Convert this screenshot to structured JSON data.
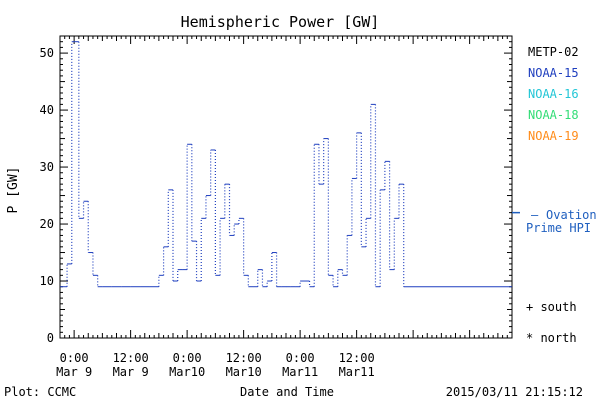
{
  "chart_data": {
    "type": "line",
    "title": "Hemispheric Power [GW]",
    "xlabel": "Date and Time",
    "ylabel": "P [GW]",
    "ylim": [
      0,
      53
    ],
    "yticks": [
      0,
      10,
      20,
      30,
      40,
      50
    ],
    "x_range_hours": [
      -3,
      93
    ],
    "xticks": [
      {
        "hour": 0,
        "line1": "0:00",
        "line2": "Mar 9"
      },
      {
        "hour": 12,
        "line1": "12:00",
        "line2": "Mar 9"
      },
      {
        "hour": 24,
        "line1": "0:00",
        "line2": "Mar10"
      },
      {
        "hour": 36,
        "line1": "12:00",
        "line2": "Mar10"
      },
      {
        "hour": 48,
        "line1": "0:00",
        "line2": "Mar11"
      },
      {
        "hour": 60,
        "line1": "12:00",
        "line2": "Mar11"
      }
    ],
    "x_unit": "hours since 2015-03-09 00:00",
    "legend": [
      {
        "name": "METP-02",
        "color": "#000000"
      },
      {
        "name": "NOAA-15",
        "color": "#1f3fbf"
      },
      {
        "name": "NOAA-16",
        "color": "#22c6d6"
      },
      {
        "name": "NOAA-18",
        "color": "#33dd77"
      },
      {
        "name": "NOAA-19",
        "color": "#ff8c1a"
      }
    ],
    "series": [
      {
        "name": "NOAA-15",
        "color": "#1f3fbf",
        "style": "step-dotted",
        "x": [
          -3,
          -1.5,
          -0.5,
          1,
          2,
          3,
          4,
          5,
          6,
          8,
          10,
          12,
          14,
          16,
          18,
          19,
          20,
          21,
          22,
          23,
          24,
          25,
          26,
          27,
          28,
          29,
          30,
          31,
          32,
          33,
          34,
          35,
          36,
          37,
          38,
          39,
          40,
          41,
          42,
          43,
          44,
          45,
          46,
          47,
          48,
          50,
          51,
          52,
          53,
          54,
          55,
          56,
          57,
          58,
          59,
          60,
          61,
          62,
          63,
          64,
          65,
          66,
          67,
          68,
          69,
          70
        ],
        "y": [
          9,
          13,
          52,
          21,
          24,
          15,
          11,
          9,
          9,
          9,
          9,
          9,
          9,
          9,
          11,
          16,
          26,
          10,
          12,
          12,
          34,
          17,
          10,
          21,
          25,
          33,
          11,
          21,
          27,
          18,
          20,
          21,
          11,
          9,
          9,
          12,
          9,
          10,
          15,
          9,
          9,
          9,
          9,
          9,
          10,
          9,
          34,
          27,
          35,
          11,
          9,
          12,
          11,
          18,
          28,
          36,
          16,
          21,
          41,
          9,
          26,
          31,
          12,
          21,
          27,
          9
        ]
      }
    ],
    "ovation": {
      "label_line1": "Ovation",
      "label_line2": "Prime HPI",
      "value": 22,
      "color": "#1f5fbf"
    },
    "markers": {
      "south": "+ south",
      "north": "* north"
    },
    "footer": {
      "left": "Plot: CCMC",
      "right": "2015/03/11 21:15:12"
    }
  }
}
